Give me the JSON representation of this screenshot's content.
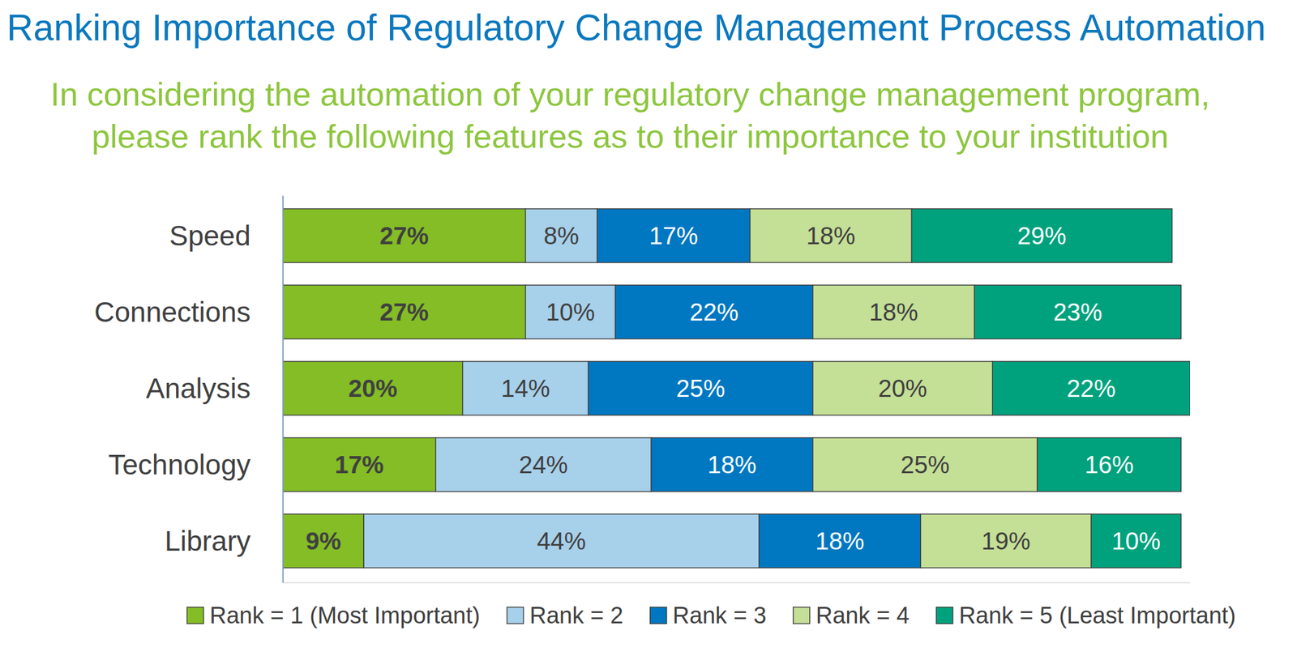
{
  "chart_data": {
    "type": "bar",
    "orientation": "horizontal",
    "stacked": true,
    "data_labels": true,
    "tick_labels": "y",
    "grid": false,
    "legend": "bottom",
    "title": "Ranking Importance of Regulatory Change Management Process Automation",
    "subtitle": "In considering the automation of your regulatory change management program, please rank the following features as to their importance to your institution",
    "categories": [
      "Speed",
      "Connections",
      "Analysis",
      "Technology",
      "Library"
    ],
    "xlim": [
      0,
      101
    ],
    "series": [
      {
        "name": "Rank = 1 (Most Important)",
        "color": "#84bd25",
        "values": [
          27,
          27,
          20,
          17,
          9
        ],
        "value_labels": [
          "27%",
          "27%",
          "20%",
          "17%",
          "9%"
        ]
      },
      {
        "name": "Rank = 2",
        "color": "#a7d0ea",
        "values": [
          8,
          10,
          14,
          24,
          44
        ],
        "value_labels": [
          "8%",
          "10%",
          "14%",
          "24%",
          "44%"
        ]
      },
      {
        "name": "Rank = 3",
        "color": "#0077c1",
        "values": [
          17,
          22,
          25,
          18,
          18
        ],
        "value_labels": [
          "17%",
          "22%",
          "25%",
          "18%",
          "18%"
        ]
      },
      {
        "name": "Rank = 4",
        "color": "#c4df96",
        "values": [
          18,
          18,
          20,
          25,
          19
        ],
        "value_labels": [
          "18%",
          "18%",
          "20%",
          "25%",
          "19%"
        ]
      },
      {
        "name": "Rank = 5 (Least Important)",
        "color": "#00a27d",
        "values": [
          29,
          23,
          22,
          16,
          10
        ],
        "value_labels": [
          "29%",
          "23%",
          "22%",
          "16%",
          "10%"
        ]
      }
    ]
  }
}
